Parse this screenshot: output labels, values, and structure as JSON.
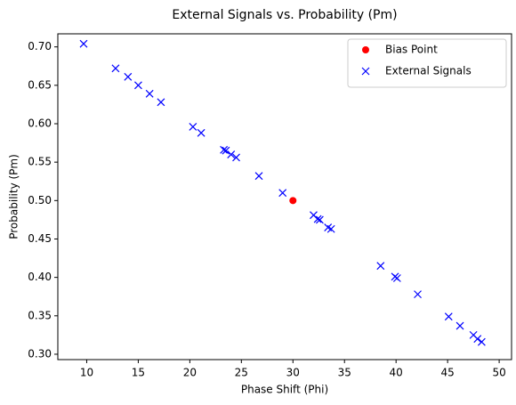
{
  "chart_data": {
    "type": "scatter",
    "title": "External Signals vs. Probability (Pm)",
    "x_label": "Phase Shift (Phi)",
    "y_label": "Probability (Pm)",
    "xlim": [
      7.2,
      51.2
    ],
    "ylim": [
      0.293,
      0.717
    ],
    "xticks": [
      10,
      15,
      20,
      25,
      30,
      35,
      40,
      45,
      50
    ],
    "yticks": [
      {
        "value": 0.3,
        "label": "0.30"
      },
      0.35,
      {
        "value": 0.4,
        "label": "0.40"
      },
      0.45,
      {
        "value": 0.5,
        "label": "0.50"
      },
      0.55,
      {
        "value": 0.6,
        "label": "0.60"
      },
      0.65,
      {
        "value": 0.7,
        "label": "0.70"
      }
    ],
    "grid": false,
    "legend": "upper right",
    "series": [
      {
        "name": "Bias Point",
        "color": "#ff0000",
        "marker": "o",
        "x": [
          30
        ],
        "values": [
          0.5
        ]
      },
      {
        "name": "External Signals",
        "color": "#0000ff",
        "marker": "x",
        "x": [
          9.7,
          12.8,
          14.0,
          15.0,
          16.1,
          17.2,
          20.3,
          21.1,
          23.3,
          23.5,
          24.0,
          24.5,
          26.7,
          29.0,
          32.0,
          32.4,
          32.6,
          33.4,
          33.7,
          38.5,
          39.9,
          40.1,
          42.1,
          45.1,
          46.2,
          47.5,
          47.9,
          48.3
        ],
        "values": [
          0.704,
          0.672,
          0.661,
          0.65,
          0.639,
          0.628,
          0.596,
          0.588,
          0.566,
          0.565,
          0.56,
          0.556,
          0.532,
          0.51,
          0.481,
          0.476,
          0.475,
          0.465,
          0.463,
          0.415,
          0.401,
          0.399,
          0.378,
          0.349,
          0.337,
          0.325,
          0.32,
          0.316
        ]
      }
    ]
  }
}
